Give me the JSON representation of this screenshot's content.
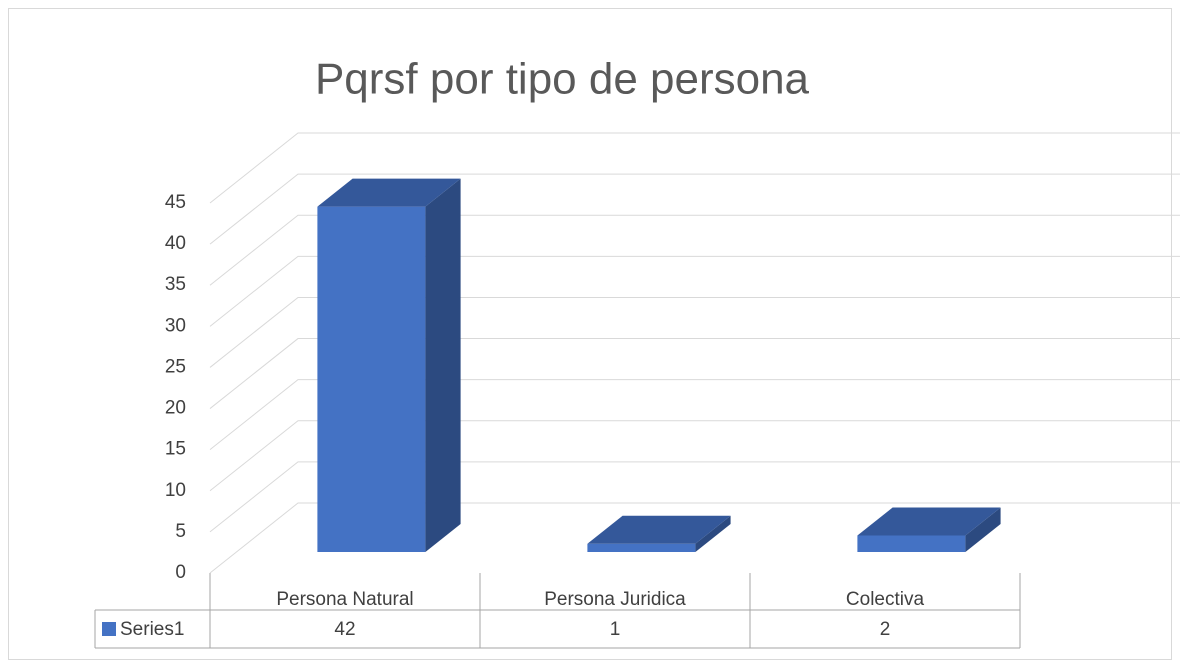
{
  "chart_data": {
    "type": "bar3d",
    "title": "Pqrsf por tipo de persona",
    "categories": [
      "Persona Natural",
      "Persona Juridica",
      "Colectiva"
    ],
    "series": [
      {
        "name": "Series1",
        "color": "#4472c4",
        "values": [
          42,
          1,
          2
        ]
      }
    ],
    "ylim": [
      0,
      45
    ],
    "yticks": [
      0,
      5,
      10,
      15,
      20,
      25,
      30,
      35,
      40,
      45
    ],
    "grid": true,
    "data_table": true
  }
}
